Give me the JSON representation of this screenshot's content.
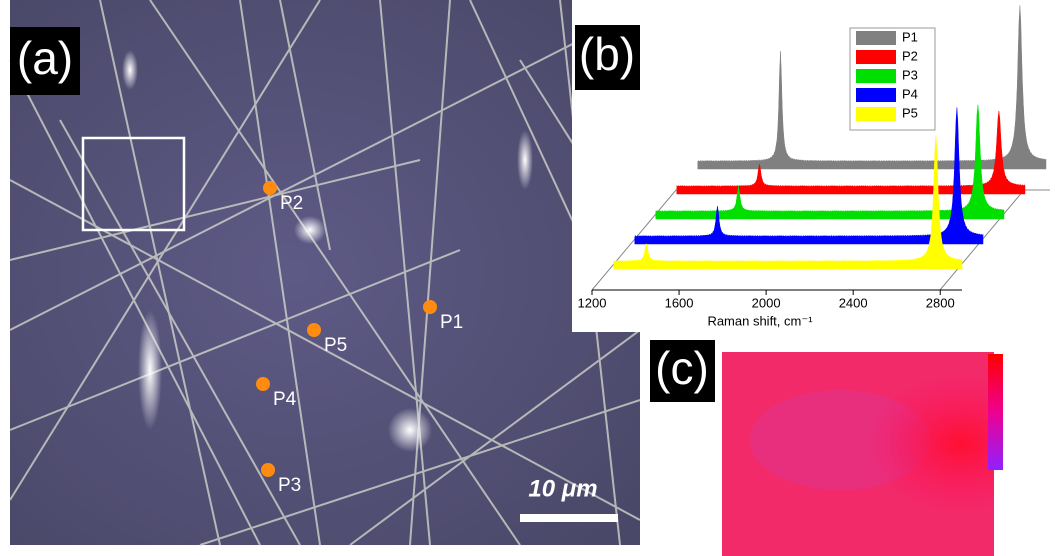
{
  "panel_a": {
    "label": "(a)",
    "points": [
      "P1",
      "P2",
      "P3",
      "P4",
      "P5"
    ],
    "scale_bar": "10 μm"
  },
  "chart_data": {
    "type": "waterfall",
    "panel_label": "(b)",
    "xlabel": "Raman shift, cm⁻¹",
    "xlim": [
      1200,
      2900
    ],
    "xticks": [
      1200,
      1600,
      2000,
      2400,
      2800
    ],
    "series": [
      {
        "name": "P1",
        "color": "#808080",
        "peak_x": [
          1680,
          2780
        ],
        "peak_height": [
          110,
          155
        ]
      },
      {
        "name": "P2",
        "color": "#ff0000",
        "peak_x": [
          1680,
          2780
        ],
        "peak_height": [
          22,
          75
        ]
      },
      {
        "name": "P3",
        "color": "#00e000",
        "peak_x": [
          1680,
          2780
        ],
        "peak_height": [
          25,
          107
        ]
      },
      {
        "name": "P4",
        "color": "#0000ff",
        "peak_x": [
          1680,
          2780
        ],
        "peak_height": [
          30,
          128
        ]
      },
      {
        "name": "P5",
        "color": "#ffff00",
        "peak_x": [
          1450,
          2780
        ],
        "peak_height": [
          18,
          125
        ]
      }
    ]
  },
  "panel_c": {
    "label": "(c)"
  }
}
